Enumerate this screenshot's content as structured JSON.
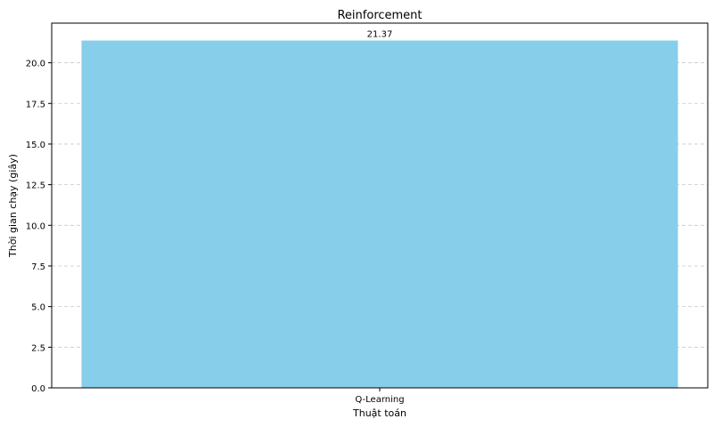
{
  "chart_data": {
    "type": "bar",
    "title": "Reinforcement",
    "xlabel": "Thuật toán",
    "ylabel": "Thời gian chạy (giây)",
    "categories": [
      "Q-Learning"
    ],
    "values": [
      21.37
    ],
    "value_labels": [
      "21.37"
    ],
    "ylim": [
      0,
      22.44
    ],
    "yticks": [
      0,
      2.5,
      5,
      7.5,
      10,
      12.5,
      15,
      17.5,
      20
    ],
    "ytick_labels": [
      "0.0",
      "2.5",
      "5.0",
      "7.5",
      "10.0",
      "12.5",
      "15.0",
      "17.5",
      "20.0"
    ],
    "grid": "y-dashed",
    "bar_color": "#87CEEB",
    "grid_color": "#c8c8c8"
  }
}
